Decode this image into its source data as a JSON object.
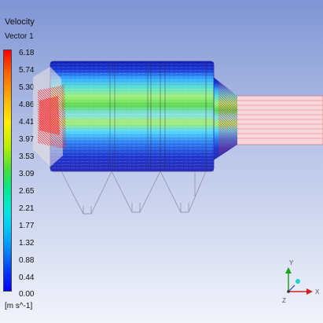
{
  "legend": {
    "title": "Velocity",
    "subtitle": "Vector 1",
    "ticks": [
      "6.18",
      "5.74",
      "5.30",
      "4.86",
      "4.41",
      "3.97",
      "3.53",
      "3.09",
      "2.65",
      "2.21",
      "1.77",
      "1.32",
      "0.88",
      "0.44",
      "0.00"
    ],
    "units": "[m s^-1]",
    "colors": {
      "max": "#ff0000",
      "mid": "#40e040",
      "min": "#0000ff"
    }
  },
  "triad": {
    "x_label": "X",
    "y_label": "Y",
    "z_label": "Z"
  }
}
